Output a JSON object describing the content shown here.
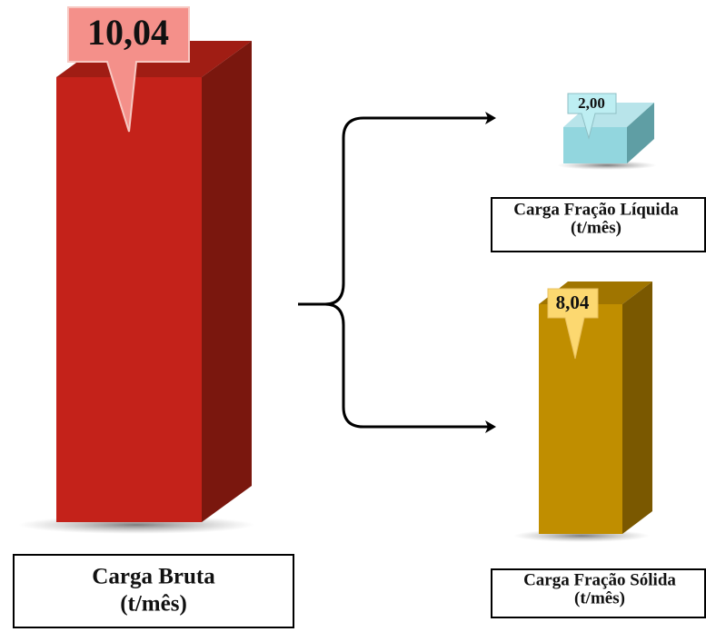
{
  "boxes": [
    {
      "name": "Carga Bruta",
      "unit": "(t/mês)",
      "value": "10,04"
    },
    {
      "name": "Carga Fração Líquida",
      "unit": "(t/mês)",
      "value": "2,00"
    },
    {
      "name": "Carga Fração Sólida",
      "unit": "(t/mês)",
      "value": "8,04"
    }
  ]
}
